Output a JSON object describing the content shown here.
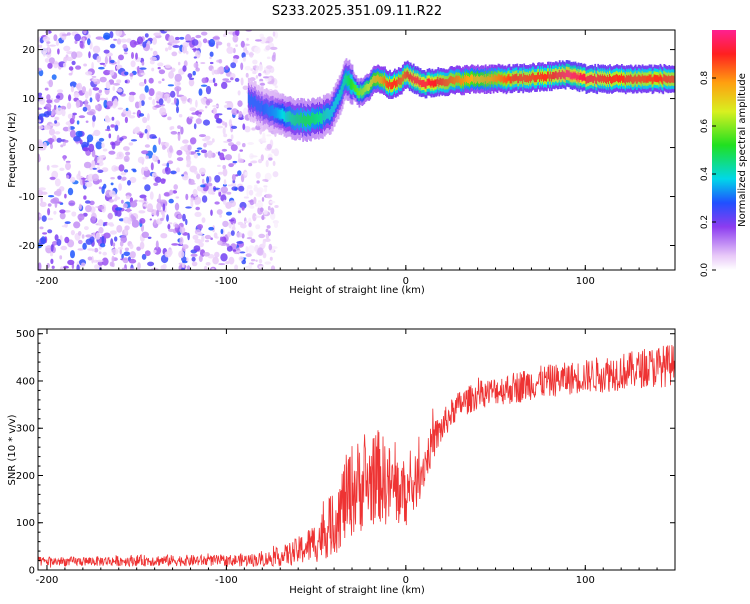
{
  "chart_data": [
    {
      "type": "heatmap",
      "title": "S233.2025.351.09.11.R22",
      "xlabel": "Height of straight line (km)",
      "ylabel": "Frequency (Hz)",
      "xlim": [
        -205,
        150
      ],
      "ylim": [
        -25,
        24
      ],
      "xticks": [
        -200,
        -100,
        0,
        100
      ],
      "yticks": [
        -20,
        -10,
        0,
        10,
        20
      ],
      "colorbar": {
        "label": "Normalized spectral amplitude",
        "range": [
          0.0,
          1.0
        ],
        "ticks": [
          0.0,
          0.2,
          0.4,
          0.6,
          0.8
        ]
      },
      "noise_region_x": [
        -205,
        -80
      ],
      "signal_ridge": {
        "x": [
          -88,
          -80,
          -72,
          -64,
          -56,
          -48,
          -42,
          -38,
          -34,
          -30,
          -26,
          -22,
          -18,
          -14,
          -10,
          -6,
          -2,
          0,
          4,
          10,
          20,
          40,
          60,
          80,
          90,
          100,
          120,
          150
        ],
        "freq": [
          10,
          8,
          7,
          6,
          5.5,
          6,
          7,
          10,
          14,
          13,
          11,
          12,
          14,
          14,
          13,
          13,
          14,
          15,
          14,
          13,
          13.5,
          14,
          14,
          14.5,
          15,
          14,
          14,
          14
        ],
        "amplitude": [
          0.3,
          0.3,
          0.35,
          0.45,
          0.5,
          0.45,
          0.4,
          0.4,
          0.45,
          0.55,
          0.6,
          0.65,
          0.75,
          0.8,
          0.9,
          0.9,
          0.85,
          0.9,
          0.95,
          0.95,
          0.9,
          0.75,
          0.9,
          0.9,
          1.0,
          0.95,
          0.9,
          0.9
        ]
      }
    },
    {
      "type": "line",
      "xlabel": "Height of straight line (km)",
      "ylabel": "SNR (10 * v/v)",
      "xlim": [
        -205,
        150
      ],
      "ylim": [
        0,
        510
      ],
      "xticks": [
        -200,
        -100,
        0,
        100
      ],
      "yticks": [
        0,
        100,
        200,
        300,
        400,
        500
      ],
      "color": "#ee3333",
      "series": [
        {
          "name": "SNR",
          "x": [
            -205,
            -180,
            -150,
            -120,
            -100,
            -80,
            -70,
            -60,
            -50,
            -40,
            -35,
            -30,
            -25,
            -20,
            -15,
            -10,
            -5,
            0,
            5,
            10,
            15,
            20,
            25,
            30,
            40,
            50,
            60,
            70,
            80,
            90,
            100,
            110,
            120,
            130,
            140,
            150
          ],
          "mean": [
            18,
            18,
            20,
            20,
            20,
            22,
            28,
            40,
            60,
            100,
            140,
            170,
            180,
            185,
            200,
            180,
            170,
            160,
            180,
            220,
            270,
            300,
            330,
            350,
            370,
            380,
            385,
            395,
            400,
            405,
            410,
            415,
            420,
            425,
            430,
            435
          ],
          "spread": [
            10,
            10,
            12,
            12,
            12,
            15,
            20,
            30,
            45,
            70,
            90,
            100,
            100,
            95,
            100,
            90,
            80,
            70,
            60,
            50,
            40,
            35,
            30,
            30,
            30,
            30,
            35,
            35,
            35,
            35,
            35,
            40,
            40,
            40,
            45,
            45
          ]
        }
      ]
    }
  ]
}
